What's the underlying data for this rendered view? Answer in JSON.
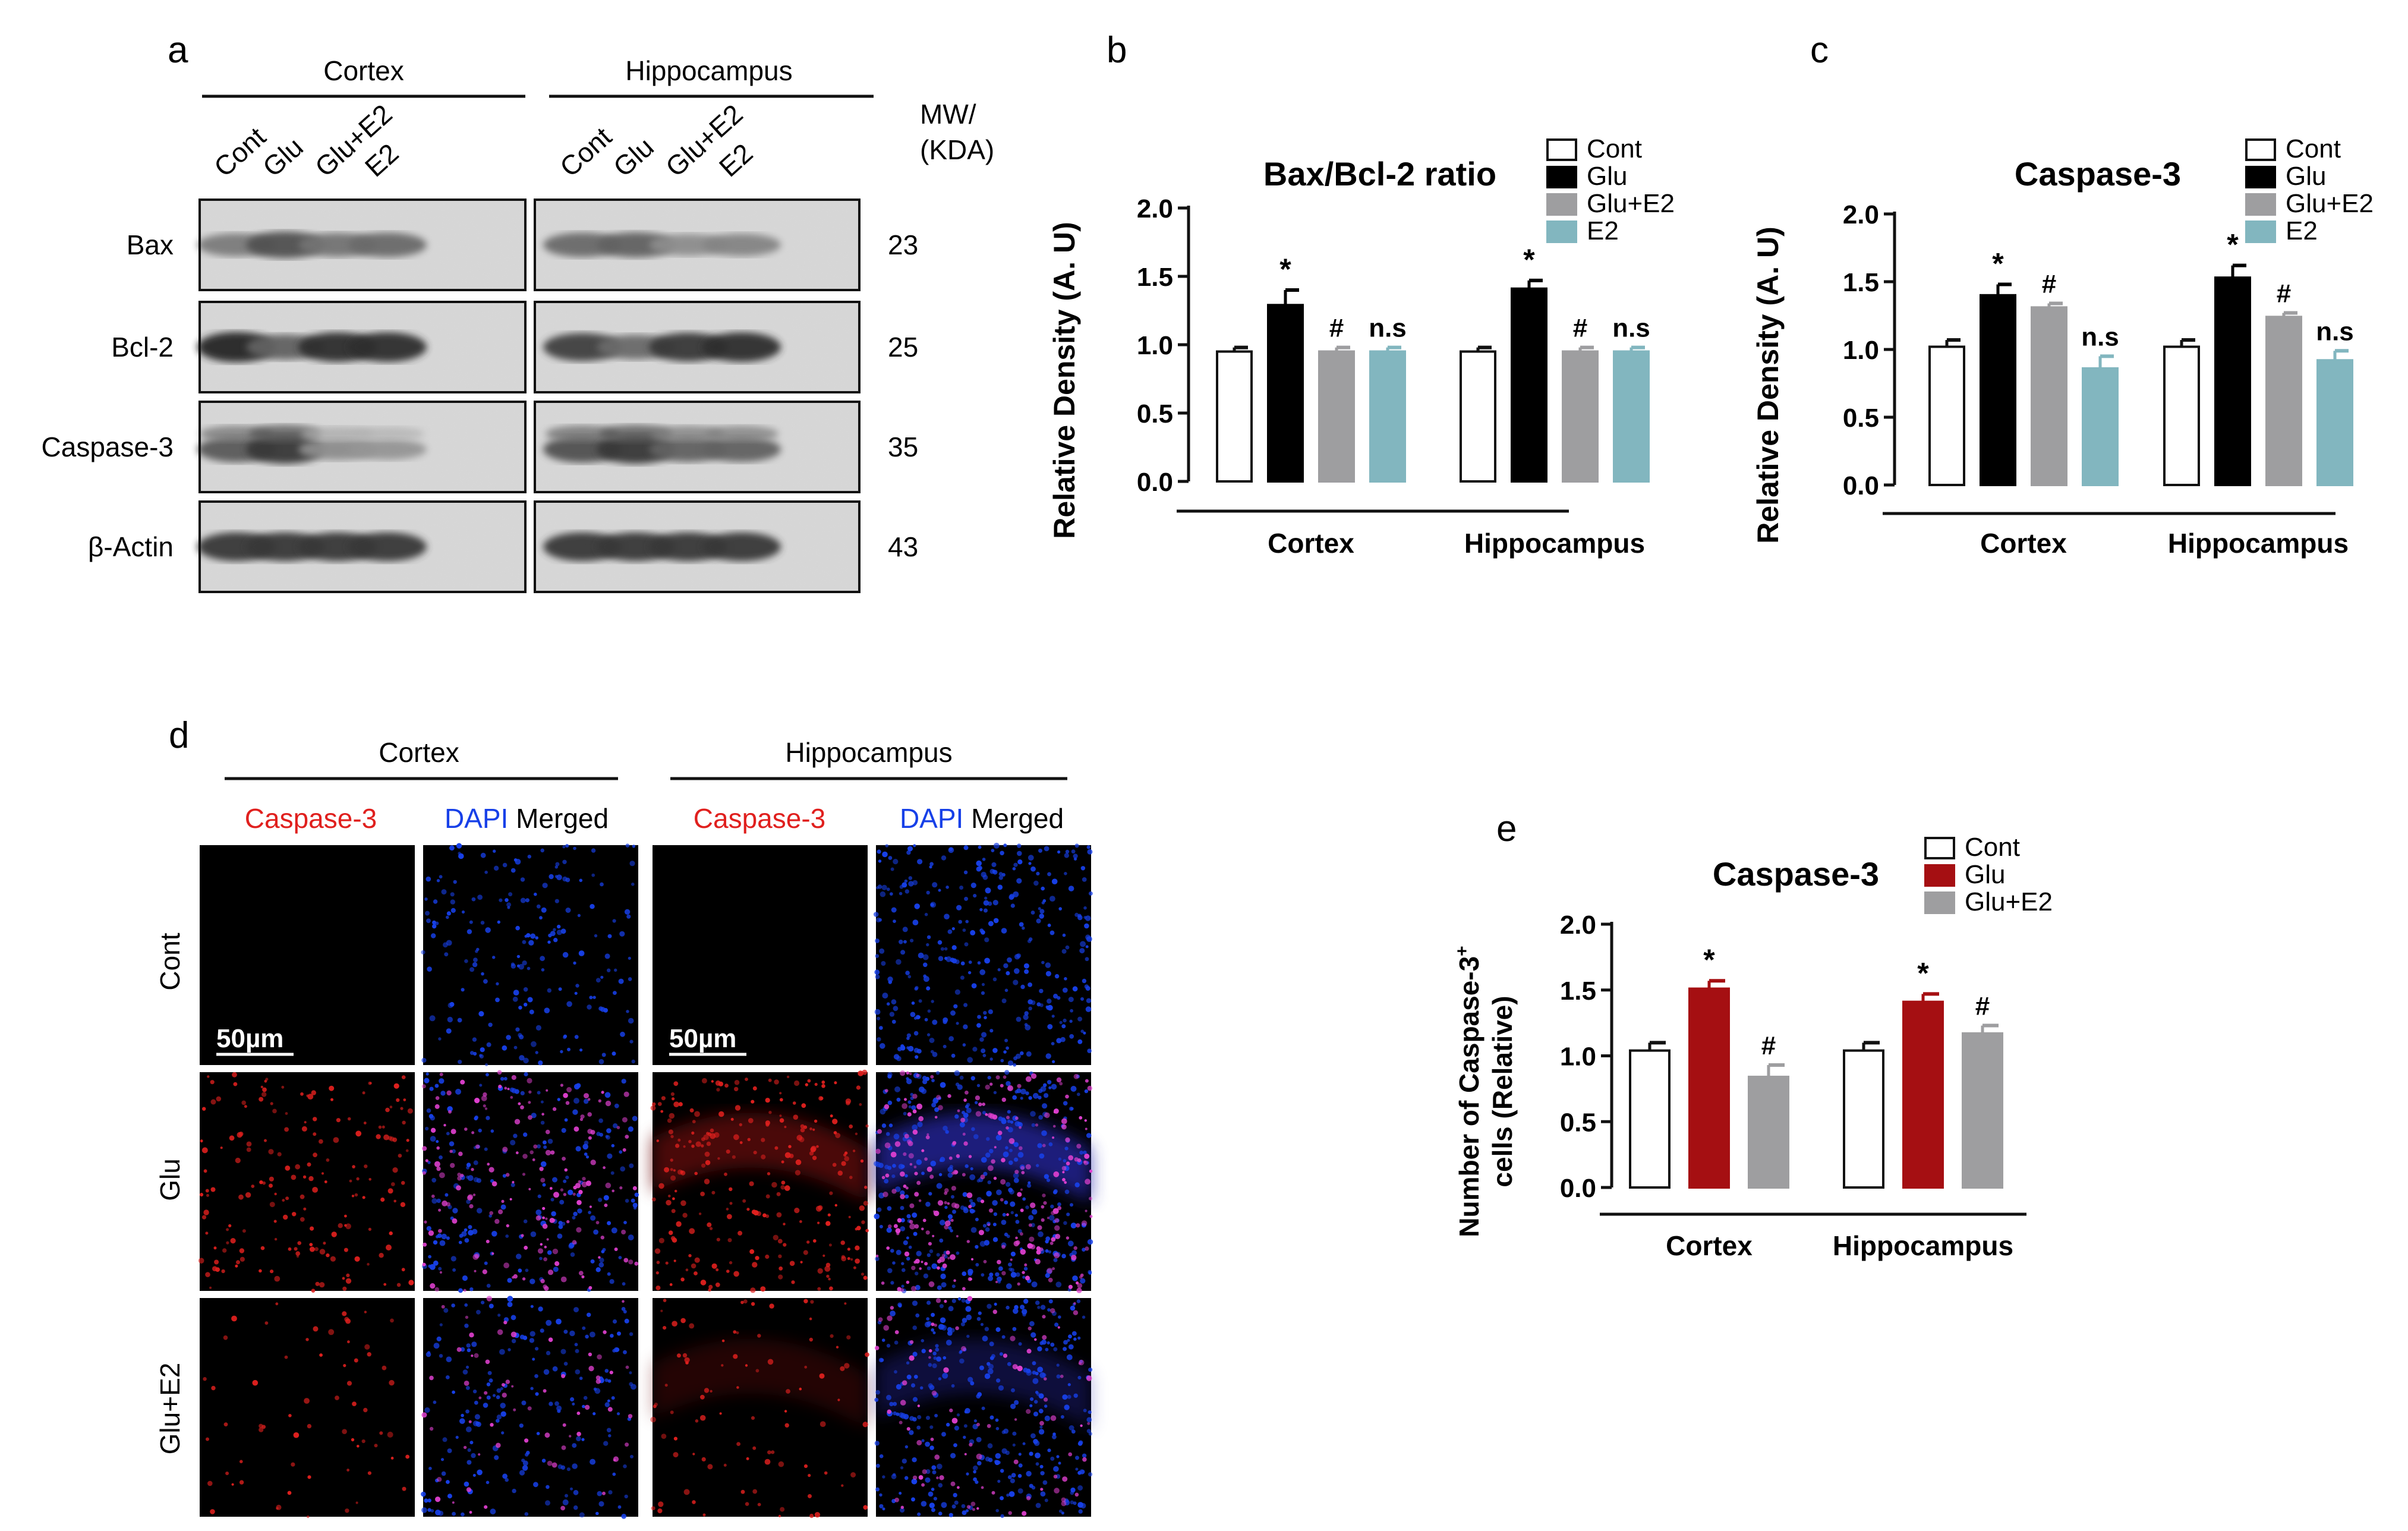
{
  "panel_a": {
    "letter": "a",
    "regions": [
      "Cortex",
      "Hippocampus"
    ],
    "lanes": [
      "Cont",
      "Glu",
      "Glu+E2",
      "E2"
    ],
    "mw_header": [
      "MW/",
      "(KDA)"
    ],
    "rows": [
      {
        "protein": "Bax",
        "mw": "23",
        "cortex": [
          0.45,
          0.7,
          0.5,
          0.55
        ],
        "hippocampus": [
          0.55,
          0.6,
          0.35,
          0.4
        ]
      },
      {
        "protein": "Bcl-2",
        "mw": "25",
        "cortex": [
          0.95,
          0.6,
          0.9,
          0.9
        ],
        "hippocampus": [
          0.8,
          0.55,
          0.85,
          0.9
        ]
      },
      {
        "protein": "Caspase-3",
        "mw": "35",
        "cortex": [
          0.65,
          0.85,
          0.35,
          0.3
        ],
        "hippocampus": [
          0.7,
          0.85,
          0.6,
          0.6
        ]
      },
      {
        "protein": "β-Actin",
        "mw": "43",
        "cortex": [
          0.85,
          0.85,
          0.85,
          0.85
        ],
        "hippocampus": [
          0.85,
          0.85,
          0.85,
          0.85
        ]
      }
    ]
  },
  "chart_data": [
    {
      "type": "bar",
      "panel": "b",
      "title": "Bax/Bcl-2 ratio",
      "ylabel": "Relative Density (A. U)",
      "xlabel": "",
      "ylim": [
        0,
        2.0
      ],
      "yticks": [
        "0.0",
        "0.5",
        "1.0",
        "1.5",
        "2.0"
      ],
      "categories": [
        "Cortex",
        "Hippocampus"
      ],
      "legend_position": "top-right",
      "series": [
        {
          "name": "Cont",
          "color": "#ffffff",
          "values": [
            0.95,
            0.95
          ],
          "errors": [
            0.03,
            0.03
          ],
          "marks": [
            "",
            ""
          ]
        },
        {
          "name": "Glu",
          "color": "#000000",
          "values": [
            1.29,
            1.41
          ],
          "errors": [
            0.11,
            0.06
          ],
          "marks": [
            "*",
            "*"
          ]
        },
        {
          "name": "Glu+E2",
          "color": "#9e9ea0",
          "values": [
            0.95,
            0.95
          ],
          "errors": [
            0.03,
            0.03
          ],
          "marks": [
            "#",
            "#"
          ]
        },
        {
          "name": "E2",
          "color": "#82b6bf",
          "values": [
            0.95,
            0.95
          ],
          "errors": [
            0.03,
            0.03
          ],
          "marks": [
            "n.s",
            "n.s"
          ]
        }
      ]
    },
    {
      "type": "bar",
      "panel": "c",
      "title": "Caspase-3",
      "ylabel": "Relative Density (A. U)",
      "xlabel": "",
      "ylim": [
        0,
        2.0
      ],
      "yticks": [
        "0.0",
        "0.5",
        "1.0",
        "1.5",
        "2.0"
      ],
      "categories": [
        "Cortex",
        "Hippocampus"
      ],
      "legend_position": "top-right",
      "series": [
        {
          "name": "Cont",
          "color": "#ffffff",
          "values": [
            1.02,
            1.02
          ],
          "errors": [
            0.05,
            0.05
          ],
          "marks": [
            "",
            ""
          ]
        },
        {
          "name": "Glu",
          "color": "#000000",
          "values": [
            1.4,
            1.53
          ],
          "errors": [
            0.08,
            0.09
          ],
          "marks": [
            "*",
            "*"
          ]
        },
        {
          "name": "Glu+E2",
          "color": "#9e9ea0",
          "values": [
            1.31,
            1.24
          ],
          "errors": [
            0.03,
            0.03
          ],
          "marks": [
            "#",
            "#"
          ]
        },
        {
          "name": "E2",
          "color": "#82b6bf",
          "values": [
            0.86,
            0.92
          ],
          "errors": [
            0.09,
            0.07
          ],
          "marks": [
            "n.s",
            "n.s"
          ]
        }
      ]
    },
    {
      "type": "bar",
      "panel": "e",
      "title": "Caspase-3",
      "ylabel_lines": [
        "Number of Caspase-3",
        "cells (Relative)"
      ],
      "ylabel_sup": "+",
      "xlabel": "",
      "ylim": [
        0,
        2.0
      ],
      "yticks": [
        "0.0",
        "0.5",
        "1.0",
        "1.5",
        "2.0"
      ],
      "categories": [
        "Cortex",
        "Hippocampus"
      ],
      "legend_position": "top-right",
      "series": [
        {
          "name": "Cont",
          "color": "#ffffff",
          "values": [
            1.04,
            1.04
          ],
          "errors": [
            0.06,
            0.06
          ],
          "marks": [
            "",
            ""
          ]
        },
        {
          "name": "Glu",
          "color": "#a50f12",
          "values": [
            1.51,
            1.41
          ],
          "errors": [
            0.06,
            0.06
          ],
          "marks": [
            "*",
            "*"
          ]
        },
        {
          "name": "Glu+E2",
          "color": "#9e9ea0",
          "values": [
            0.84,
            1.17
          ],
          "errors": [
            0.09,
            0.06
          ],
          "marks": [
            "#",
            "#"
          ]
        }
      ]
    }
  ],
  "panel_d": {
    "letter": "d",
    "regions": [
      "Cortex",
      "Hippocampus"
    ],
    "stain_label": "Caspase-3",
    "merge_label_blue": "DAPI",
    "merge_label_rest": "Merged",
    "rows": [
      "Cont",
      "Glu",
      "Glu+E2"
    ],
    "scale_bar": "50µm",
    "red_color": "#e0201e",
    "blue_color": "#1740e8"
  },
  "panel_letters": {
    "b": "b",
    "c": "c",
    "e": "e"
  }
}
